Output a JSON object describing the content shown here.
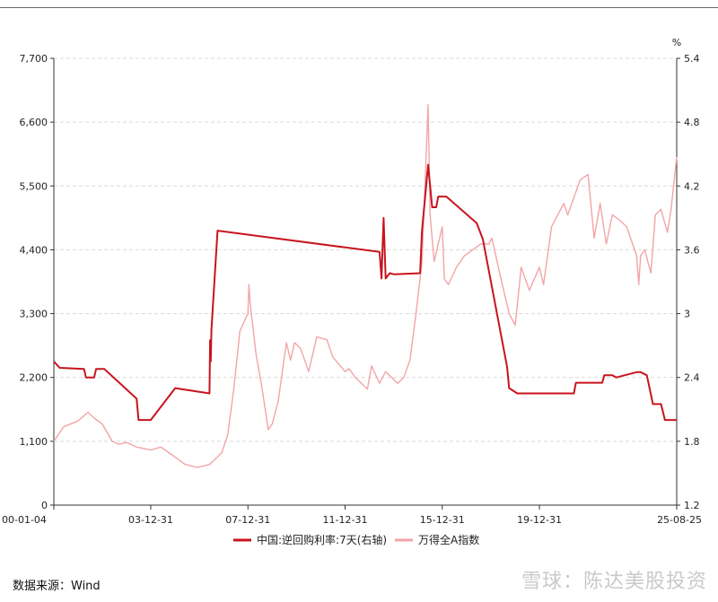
{
  "chart_data": {
    "type": "line",
    "title": "",
    "right_axis_unit": "%",
    "x_tick_labels": [
      "00-01-04",
      "03-12-31",
      "07-12-31",
      "11-12-31",
      "15-12-31",
      "19-12-31",
      "25-08-25"
    ],
    "x_tick_dates": [
      "2000-01-04",
      "2003-12-31",
      "2007-12-31",
      "2011-12-31",
      "2015-12-31",
      "2019-12-31",
      "2025-08-25"
    ],
    "left_axis": {
      "min": 0,
      "max": 7700,
      "ticks": [
        0,
        1100,
        2200,
        3300,
        4400,
        5500,
        6600,
        7700
      ],
      "tick_labels": [
        "0",
        "1,100",
        "2,200",
        "3,300",
        "4,400",
        "5,500",
        "6,600",
        "7,700"
      ]
    },
    "right_axis": {
      "min": 1.2,
      "max": 5.4,
      "ticks": [
        1.2,
        1.8,
        2.4,
        3,
        3.6,
        4.2,
        4.8,
        5.4
      ],
      "tick_labels": [
        "1.2",
        "1.8",
        "2.4",
        "3",
        "3.6",
        "4.2",
        "4.8",
        "5.4"
      ]
    },
    "grid": "horizontal-dashed",
    "legend_position": "bottom",
    "series": [
      {
        "name": "中国:逆回购利率:7天(右轴)",
        "axis": "right",
        "color": "#c8141e",
        "points": [
          [
            "2000-01-04",
            2.55
          ],
          [
            "2000-04-01",
            2.49
          ],
          [
            "2001-04-01",
            2.48
          ],
          [
            "2001-05-01",
            2.4
          ],
          [
            "2001-09-01",
            2.4
          ],
          [
            "2001-10-01",
            2.48
          ],
          [
            "2002-02-01",
            2.48
          ],
          [
            "2003-06-01",
            2.2
          ],
          [
            "2003-07-01",
            2.0
          ],
          [
            "2004-01-01",
            2.0
          ],
          [
            "2005-01-01",
            2.3
          ],
          [
            "2006-06-01",
            2.25
          ],
          [
            "2006-06-10",
            2.75
          ],
          [
            "2006-06-20",
            2.55
          ],
          [
            "2006-07-01",
            2.85
          ],
          [
            "2006-10-01",
            3.78
          ],
          [
            "2013-06-01",
            3.58
          ],
          [
            "2013-07-01",
            3.33
          ],
          [
            "2013-08-01",
            3.9
          ],
          [
            "2013-09-01",
            3.33
          ],
          [
            "2013-11-01",
            3.38
          ],
          [
            "2014-01-01",
            3.37
          ],
          [
            "2015-02-01",
            3.38
          ],
          [
            "2015-03-01",
            3.78
          ],
          [
            "2015-06-01",
            4.4
          ],
          [
            "2015-08-01",
            4.0
          ],
          [
            "2015-10-01",
            4.0
          ],
          [
            "2015-11-01",
            4.1
          ],
          [
            "2016-03-01",
            4.1
          ],
          [
            "2017-06-01",
            3.85
          ],
          [
            "2017-09-01",
            3.7
          ],
          [
            "2018-09-01",
            2.5
          ],
          [
            "2018-10-01",
            2.3
          ],
          [
            "2019-02-01",
            2.25
          ],
          [
            "2020-03-01",
            2.25
          ],
          [
            "2021-06-01",
            2.25
          ],
          [
            "2021-07-01",
            2.35
          ],
          [
            "2022-08-01",
            2.35
          ],
          [
            "2022-09-01",
            2.42
          ],
          [
            "2023-01-01",
            2.42
          ],
          [
            "2023-03-01",
            2.4
          ],
          [
            "2024-01-01",
            2.45
          ],
          [
            "2024-03-01",
            2.45
          ],
          [
            "2024-06-01",
            2.42
          ],
          [
            "2024-09-01",
            2.15
          ],
          [
            "2025-01-01",
            2.15
          ],
          [
            "2025-03-01",
            2.0
          ],
          [
            "2025-08-25",
            2.0
          ]
        ]
      },
      {
        "name": "万得全A指数",
        "axis": "left",
        "color": "#f2a5a8",
        "points": [
          [
            "2000-01-04",
            1100
          ],
          [
            "2000-06-01",
            1350
          ],
          [
            "2001-01-01",
            1450
          ],
          [
            "2001-06-01",
            1600
          ],
          [
            "2001-09-01",
            1500
          ],
          [
            "2002-01-01",
            1400
          ],
          [
            "2002-06-01",
            1100
          ],
          [
            "2002-09-01",
            1050
          ],
          [
            "2003-01-01",
            1080
          ],
          [
            "2003-06-01",
            1000
          ],
          [
            "2003-12-31",
            950
          ],
          [
            "2004-06-01",
            1000
          ],
          [
            "2004-12-01",
            850
          ],
          [
            "2005-06-01",
            700
          ],
          [
            "2005-12-01",
            650
          ],
          [
            "2006-06-01",
            700
          ],
          [
            "2006-12-01",
            900
          ],
          [
            "2007-03-01",
            1200
          ],
          [
            "2007-06-01",
            2000
          ],
          [
            "2007-09-01",
            3000
          ],
          [
            "2007-12-31",
            3300
          ],
          [
            "2008-01-15",
            3800
          ],
          [
            "2008-02-01",
            3500
          ],
          [
            "2008-03-01",
            3200
          ],
          [
            "2008-05-01",
            2600
          ],
          [
            "2008-08-01",
            2000
          ],
          [
            "2008-11-01",
            1300
          ],
          [
            "2009-01-01",
            1400
          ],
          [
            "2009-04-01",
            1800
          ],
          [
            "2009-08-01",
            2800
          ],
          [
            "2009-10-01",
            2500
          ],
          [
            "2009-12-01",
            2800
          ],
          [
            "2010-03-01",
            2700
          ],
          [
            "2010-07-01",
            2300
          ],
          [
            "2010-11-01",
            2900
          ],
          [
            "2011-04-01",
            2850
          ],
          [
            "2011-07-01",
            2550
          ],
          [
            "2011-12-31",
            2300
          ],
          [
            "2012-03-01",
            2350
          ],
          [
            "2012-06-01",
            2200
          ],
          [
            "2012-12-01",
            2000
          ],
          [
            "2013-02-01",
            2400
          ],
          [
            "2013-06-01",
            2100
          ],
          [
            "2013-09-01",
            2300
          ],
          [
            "2013-12-01",
            2200
          ],
          [
            "2014-03-01",
            2100
          ],
          [
            "2014-06-01",
            2200
          ],
          [
            "2014-09-01",
            2500
          ],
          [
            "2014-12-01",
            3300
          ],
          [
            "2015-03-01",
            4200
          ],
          [
            "2015-06-01",
            6900
          ],
          [
            "2015-07-01",
            5000
          ],
          [
            "2015-09-01",
            4200
          ],
          [
            "2015-12-31",
            4800
          ],
          [
            "2016-01-31",
            3900
          ],
          [
            "2016-04-01",
            3800
          ],
          [
            "2016-08-01",
            4100
          ],
          [
            "2016-12-01",
            4300
          ],
          [
            "2017-04-01",
            4400
          ],
          [
            "2017-08-01",
            4500
          ],
          [
            "2017-12-01",
            4500
          ],
          [
            "2018-01-15",
            4600
          ],
          [
            "2018-06-01",
            3900
          ],
          [
            "2018-10-01",
            3300
          ],
          [
            "2019-01-01",
            3100
          ],
          [
            "2019-04-01",
            4100
          ],
          [
            "2019-08-01",
            3700
          ],
          [
            "2019-12-31",
            4100
          ],
          [
            "2020-03-01",
            3800
          ],
          [
            "2020-07-01",
            4800
          ],
          [
            "2020-12-31",
            5200
          ],
          [
            "2021-03-01",
            5000
          ],
          [
            "2021-09-01",
            5600
          ],
          [
            "2021-12-31",
            5700
          ],
          [
            "2022-04-01",
            4600
          ],
          [
            "2022-07-01",
            5200
          ],
          [
            "2022-10-01",
            4500
          ],
          [
            "2023-01-01",
            5000
          ],
          [
            "2023-05-01",
            4900
          ],
          [
            "2023-08-01",
            4800
          ],
          [
            "2023-12-31",
            4300
          ],
          [
            "2024-02-01",
            3800
          ],
          [
            "2024-03-01",
            4300
          ],
          [
            "2024-05-01",
            4400
          ],
          [
            "2024-08-01",
            4000
          ],
          [
            "2024-10-08",
            5000
          ],
          [
            "2024-12-31",
            5100
          ],
          [
            "2025-04-08",
            4700
          ],
          [
            "2025-06-01",
            5100
          ],
          [
            "2025-08-25",
            6000
          ]
        ]
      }
    ]
  },
  "source_text": "数据来源：Wind",
  "watermark_text": "雪球：陈达美股投资"
}
